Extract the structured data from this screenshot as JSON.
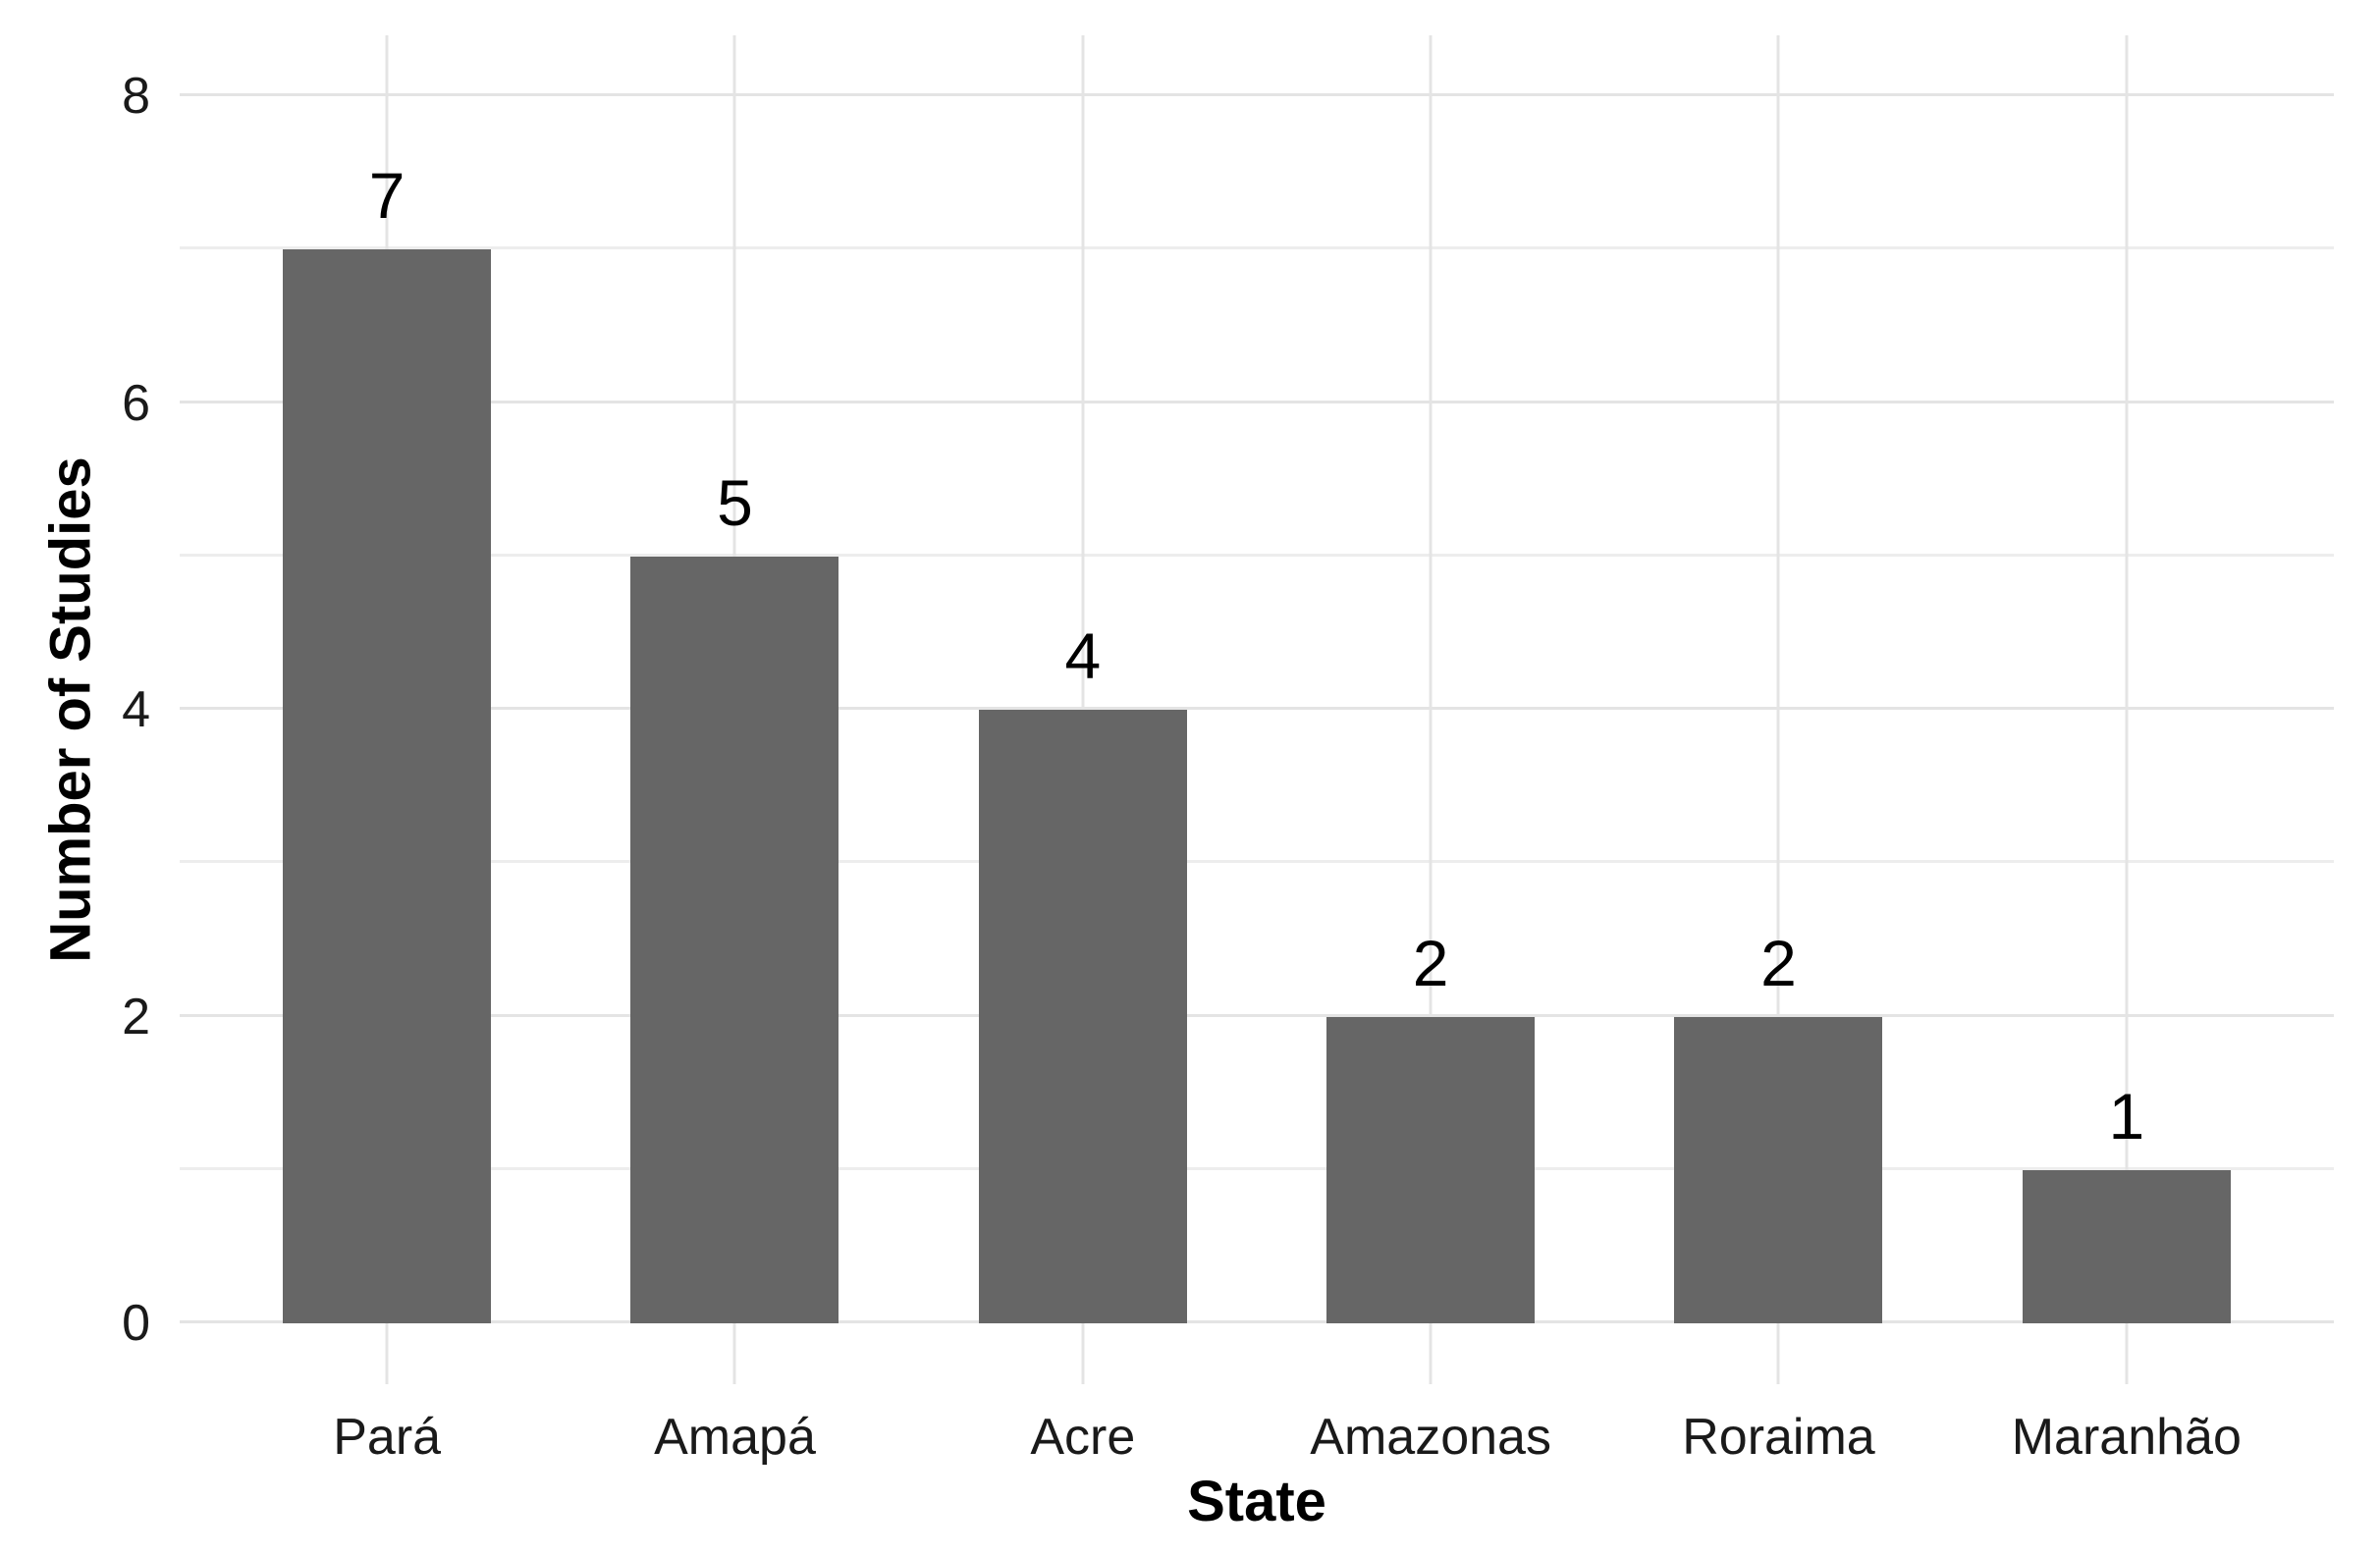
{
  "chart_data": {
    "type": "bar",
    "title": "",
    "categories": [
      "Pará",
      "Amapá",
      "Acre",
      "Amazonas",
      "Roraima",
      "Maranhão"
    ],
    "values": [
      7,
      5,
      4,
      2,
      2,
      1
    ],
    "xlabel": "State",
    "ylabel": "Number of Studies",
    "ylim": [
      0,
      8
    ],
    "yticks": [
      0,
      2,
      4,
      6,
      8
    ],
    "grid_interval": 1,
    "legend_position": "none",
    "colors": {
      "bar": "#666666",
      "grid_major": "#e4e4e4",
      "grid_minor": "#ededed",
      "tick_label": "#1a1a1a",
      "axis_title": "#000000",
      "background": "#ffffff"
    }
  }
}
